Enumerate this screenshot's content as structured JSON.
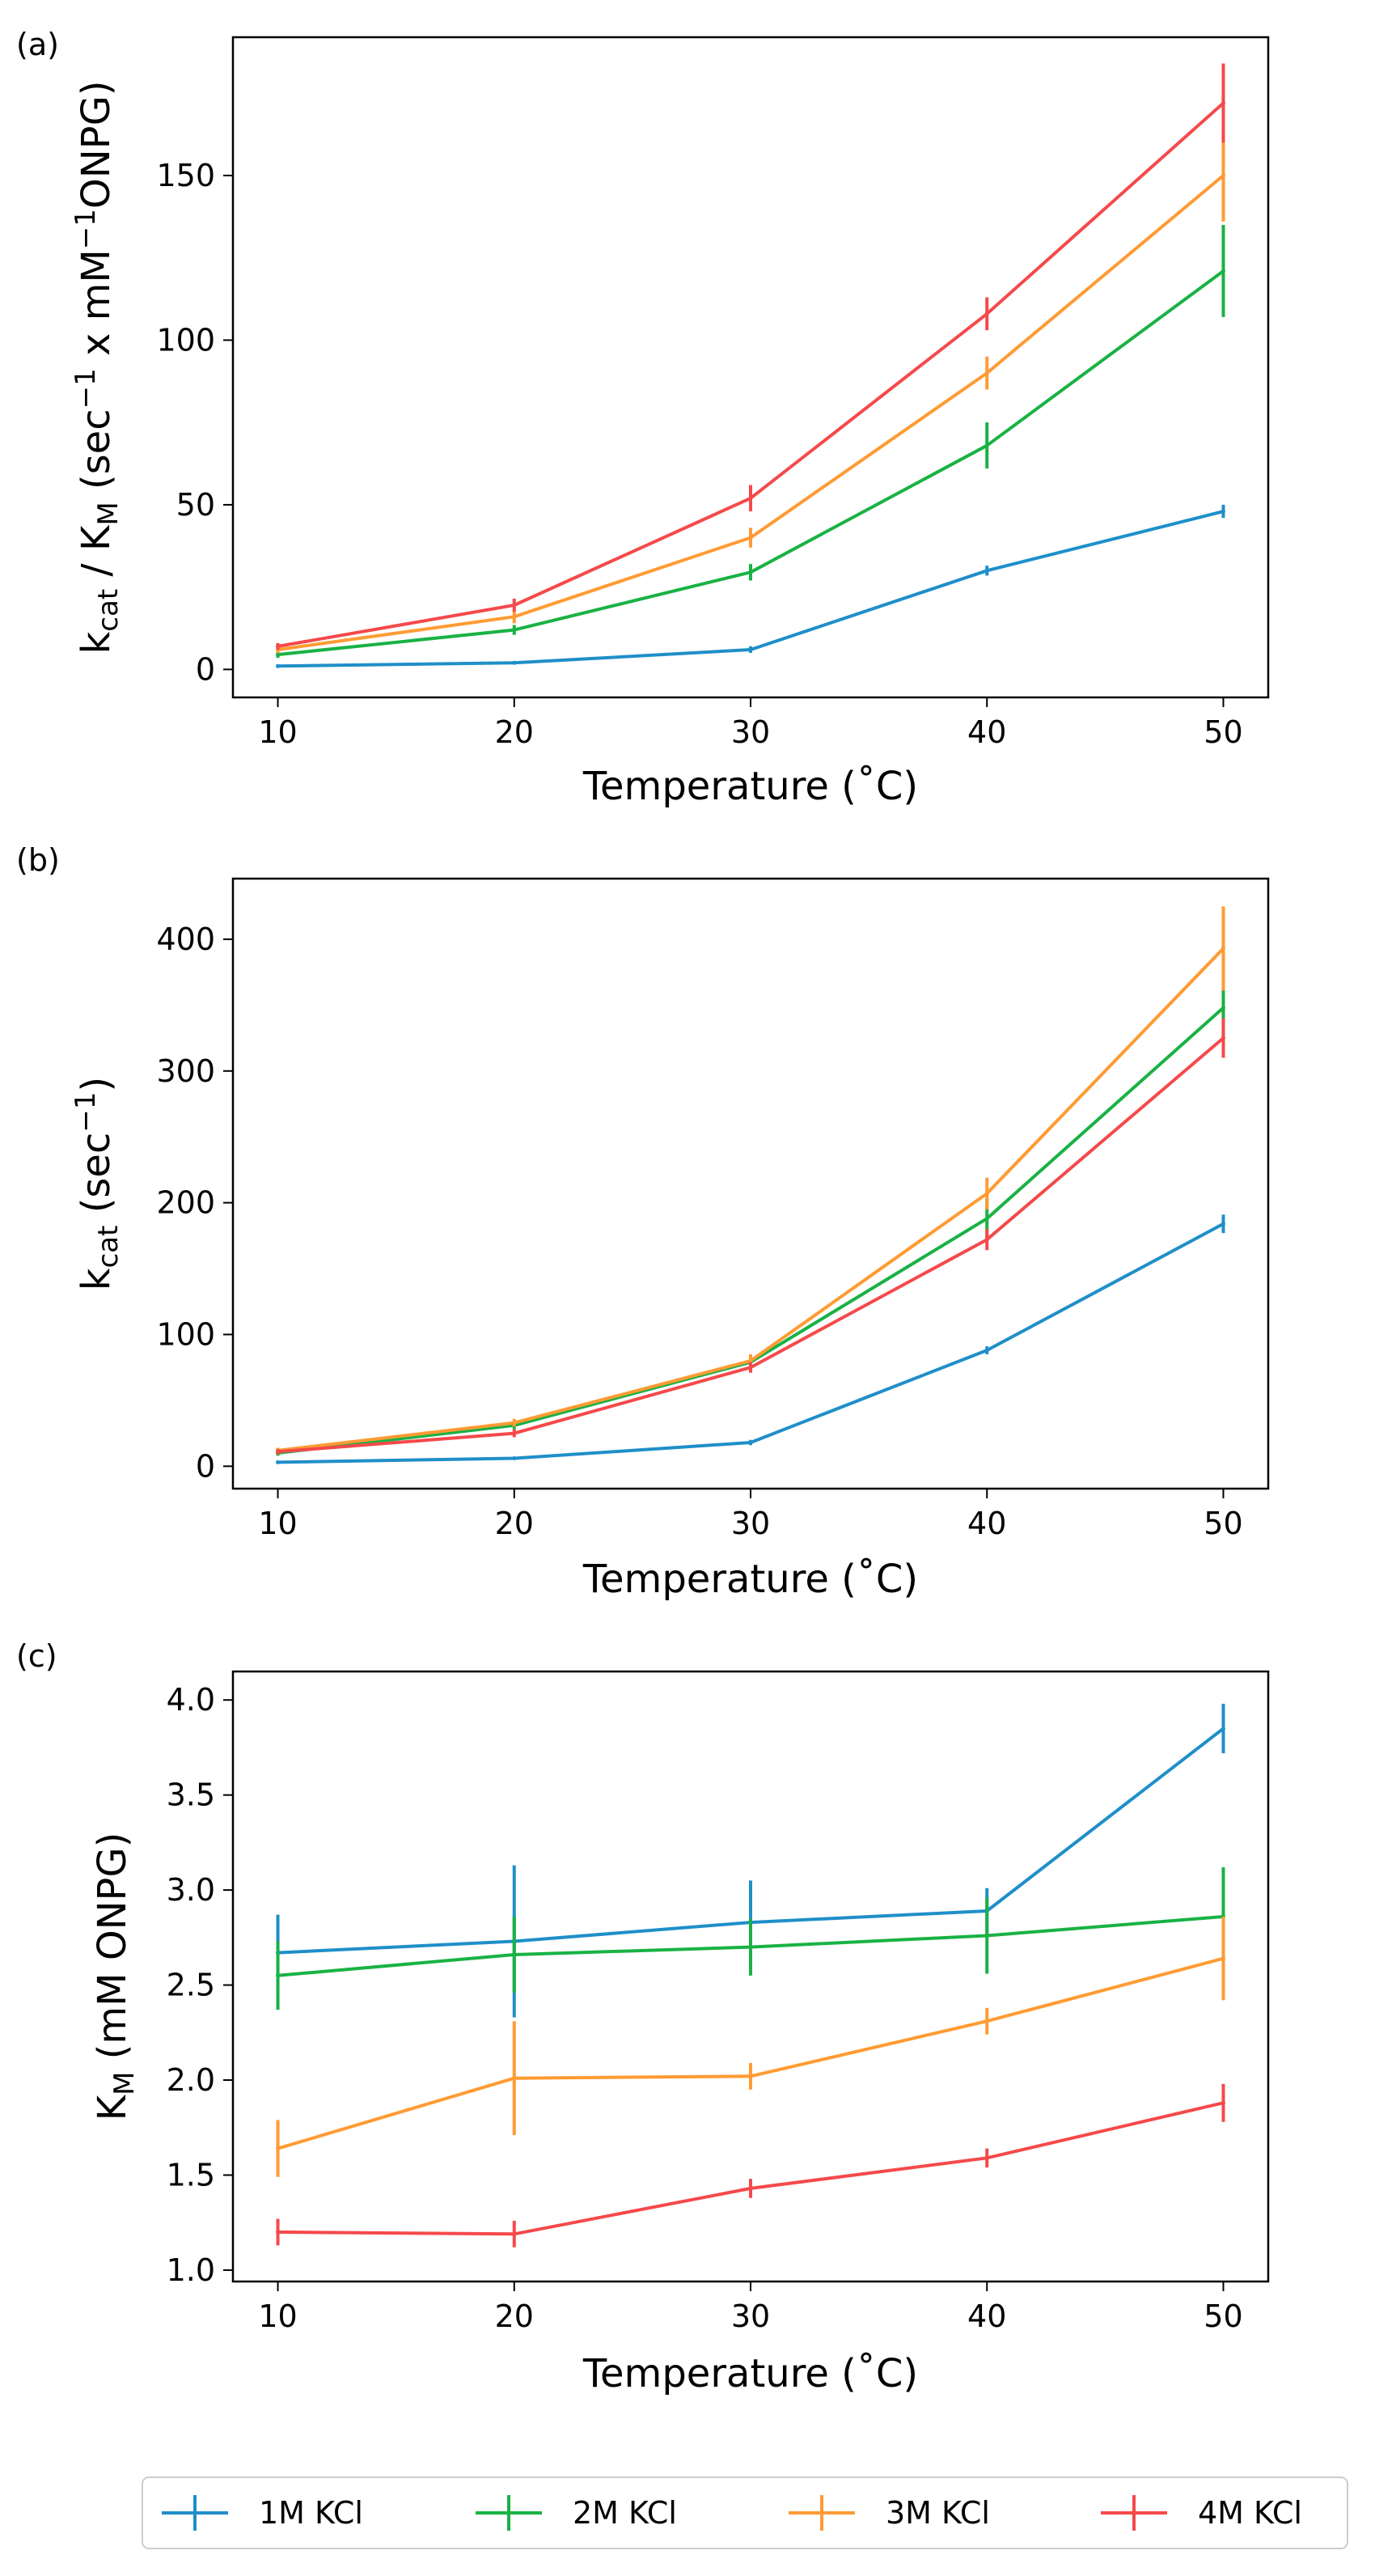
{
  "chart_data": [
    {
      "panel": "(a)",
      "type": "line",
      "error_bars": true,
      "xlabel": "Temperature (˚C)",
      "ylabel_parts": [
        "k",
        "cat",
        " / K",
        "M",
        " (sec",
        "−1",
        " x mM",
        "−1",
        "ONPG)"
      ],
      "xlim": [
        8.1,
        51.9
      ],
      "ylim": [
        -8.5,
        192
      ],
      "xticks": [
        10,
        20,
        30,
        40,
        50
      ],
      "yticks": [
        0,
        50,
        100,
        150
      ],
      "x": [
        10,
        20,
        30,
        40,
        50
      ],
      "series": [
        {
          "name": "1M KCl",
          "color": "#1f8fc9",
          "values": [
            1,
            2,
            6,
            30,
            48
          ],
          "errors": [
            0.5,
            0.5,
            1,
            1.5,
            2
          ]
        },
        {
          "name": "2M KCl",
          "color": "#19b244",
          "values": [
            4.5,
            12,
            29.5,
            68,
            121
          ],
          "errors": [
            1,
            1.5,
            2.5,
            7,
            14
          ]
        },
        {
          "name": "3M KCl",
          "color": "#ff9b33",
          "values": [
            6,
            16,
            40,
            90,
            150
          ],
          "errors": [
            1,
            2,
            3,
            5,
            14
          ]
        },
        {
          "name": "4M KCl",
          "color": "#f5494b",
          "values": [
            7,
            19.5,
            52,
            108,
            172
          ],
          "errors": [
            1,
            2,
            4,
            5,
            12
          ]
        }
      ]
    },
    {
      "panel": "(b)",
      "type": "line",
      "error_bars": true,
      "xlabel": "Temperature (˚C)",
      "ylabel_parts": [
        "k",
        "cat",
        " (sec",
        "−1",
        ")"
      ],
      "xlim": [
        8.1,
        51.9
      ],
      "ylim": [
        -17,
        446
      ],
      "xticks": [
        10,
        20,
        30,
        40,
        50
      ],
      "yticks": [
        0,
        100,
        200,
        300,
        400
      ],
      "x": [
        10,
        20,
        30,
        40,
        50
      ],
      "series": [
        {
          "name": "1M KCl",
          "color": "#1f8fc9",
          "values": [
            3,
            6,
            18,
            88,
            184
          ],
          "errors": [
            1,
            1,
            2,
            3,
            7
          ]
        },
        {
          "name": "2M KCl",
          "color": "#19b244",
          "values": [
            10,
            31,
            79,
            188,
            348
          ],
          "errors": [
            2,
            3,
            5,
            15,
            25
          ]
        },
        {
          "name": "3M KCl",
          "color": "#ff9b33",
          "values": [
            12,
            33,
            80,
            207,
            393
          ],
          "errors": [
            2,
            3,
            5,
            12,
            32
          ]
        },
        {
          "name": "4M KCl",
          "color": "#f5494b",
          "values": [
            11,
            25,
            75,
            172,
            325
          ],
          "errors": [
            2,
            3,
            4,
            8,
            15
          ]
        }
      ]
    },
    {
      "panel": "(c)",
      "type": "line",
      "error_bars": true,
      "xlabel": "Temperature (˚C)",
      "ylabel_parts": [
        "K",
        "M",
        " (mM ONPG)"
      ],
      "xlim": [
        8.1,
        51.9
      ],
      "ylim": [
        0.94,
        4.15
      ],
      "xticks": [
        10,
        20,
        30,
        40,
        50
      ],
      "yticks": [
        1.0,
        1.5,
        2.0,
        2.5,
        3.0,
        3.5,
        4.0
      ],
      "x": [
        10,
        20,
        30,
        40,
        50
      ],
      "series": [
        {
          "name": "1M KCl",
          "color": "#1f8fc9",
          "values": [
            2.67,
            2.73,
            2.83,
            2.89,
            3.85
          ],
          "errors": [
            0.2,
            0.4,
            0.22,
            0.12,
            0.13
          ]
        },
        {
          "name": "2M KCl",
          "color": "#19b244",
          "values": [
            2.55,
            2.66,
            2.7,
            2.76,
            2.86
          ],
          "errors": [
            0.18,
            0.2,
            0.15,
            0.2,
            0.26
          ]
        },
        {
          "name": "3M KCl",
          "color": "#ff9b33",
          "values": [
            1.64,
            2.01,
            2.02,
            2.31,
            2.64
          ],
          "errors": [
            0.15,
            0.3,
            0.07,
            0.07,
            0.22
          ]
        },
        {
          "name": "4M KCl",
          "color": "#f5494b",
          "values": [
            1.2,
            1.19,
            1.43,
            1.59,
            1.88
          ],
          "errors": [
            0.07,
            0.07,
            0.05,
            0.05,
            0.1
          ]
        }
      ]
    }
  ],
  "legend": [
    {
      "label": "1M KCl",
      "color": "#1f8fc9"
    },
    {
      "label": "2M KCl",
      "color": "#19b244"
    },
    {
      "label": "3M KCl",
      "color": "#ff9b33"
    },
    {
      "label": "4M KCl",
      "color": "#f5494b"
    }
  ]
}
